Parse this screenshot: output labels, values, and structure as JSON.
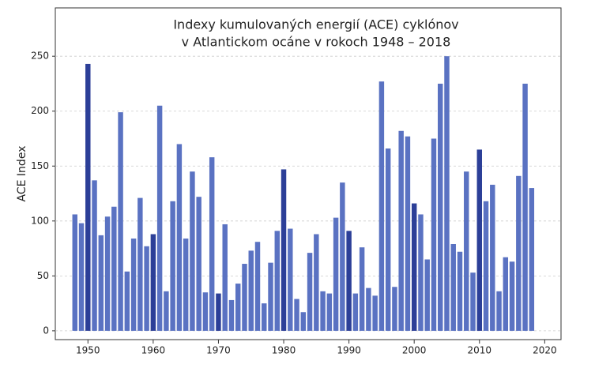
{
  "chart_data": {
    "type": "bar",
    "title": [
      "Indexy kumulovaných energií (ACE) cyklónov",
      "v Atlantickom ocáne v rokoch 1948 – 2018"
    ],
    "y_label": "ACE Index",
    "x": [
      1948,
      1949,
      1950,
      1951,
      1952,
      1953,
      1954,
      1955,
      1956,
      1957,
      1958,
      1959,
      1960,
      1961,
      1962,
      1963,
      1964,
      1965,
      1966,
      1967,
      1968,
      1969,
      1970,
      1971,
      1972,
      1973,
      1974,
      1975,
      1976,
      1977,
      1978,
      1979,
      1980,
      1981,
      1982,
      1983,
      1984,
      1985,
      1986,
      1987,
      1988,
      1989,
      1990,
      1991,
      1992,
      1993,
      1994,
      1995,
      1996,
      1997,
      1998,
      1999,
      2000,
      2001,
      2002,
      2003,
      2004,
      2005,
      2006,
      2007,
      2008,
      2009,
      2010,
      2011,
      2012,
      2013,
      2014,
      2015,
      2016,
      2017,
      2018
    ],
    "values": [
      106,
      98,
      243,
      137,
      87,
      104,
      113,
      199,
      54,
      84,
      121,
      77,
      88,
      205,
      36,
      118,
      170,
      84,
      145,
      122,
      35,
      158,
      34,
      97,
      28,
      43,
      61,
      73,
      81,
      25,
      62,
      91,
      147,
      93,
      29,
      17,
      71,
      88,
      36,
      34,
      103,
      135,
      91,
      34,
      76,
      39,
      32,
      227,
      166,
      40,
      182,
      177,
      116,
      106,
      65,
      175,
      225,
      250,
      79,
      72,
      145,
      53,
      165,
      118,
      133,
      36,
      67,
      63,
      141,
      225,
      130
    ],
    "color": "#5a72c2",
    "highlight_color": "#2c3f98",
    "highlight_x": [
      1950,
      1960,
      1970,
      1980,
      1990,
      2000,
      2010
    ],
    "xlim": [
      1945,
      2022.5
    ],
    "xticks": [
      1950,
      1960,
      1970,
      1980,
      1990,
      2000,
      2010,
      2020
    ],
    "ylim": [
      -8,
      294
    ],
    "yticks": [
      0,
      50,
      100,
      150,
      200,
      250
    ],
    "grid": true
  }
}
